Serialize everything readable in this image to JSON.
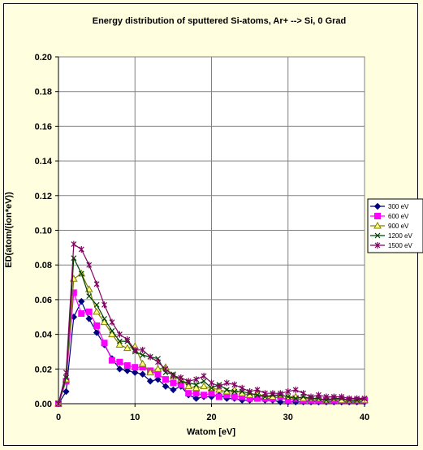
{
  "chart_data": {
    "type": "line",
    "title": "Energy distribution of sputtered Si-atoms,  Ar+ --> Si, 0 Grad",
    "xlabel": "Watom [eV]",
    "ylabel": "ED(atom/(ion*eV))",
    "xlim": [
      0,
      40
    ],
    "ylim": [
      0,
      0.2
    ],
    "xticks": [
      0,
      10,
      20,
      30,
      40
    ],
    "xtick_labels": [
      "0",
      "10",
      "20",
      "30",
      "40"
    ],
    "yticks": [
      0,
      0.02,
      0.04,
      0.06,
      0.08,
      0.1,
      0.12,
      0.14,
      0.16,
      0.18,
      0.2
    ],
    "ytick_labels": [
      "0.00",
      "0.02",
      "0.04",
      "0.06",
      "0.08",
      "0.10",
      "0.12",
      "0.14",
      "0.16",
      "0.18",
      "0.20"
    ],
    "grid": true,
    "legend_position": "right",
    "x": [
      0,
      1,
      2,
      3,
      4,
      5,
      6,
      7,
      8,
      9,
      10,
      11,
      12,
      13,
      14,
      15,
      16,
      17,
      18,
      19,
      20,
      21,
      22,
      23,
      24,
      25,
      26,
      27,
      28,
      29,
      30,
      31,
      32,
      33,
      34,
      35,
      36,
      37,
      38,
      39,
      40
    ],
    "series": [
      {
        "name": "300 eV",
        "color": "#000080",
        "marker": "diamond",
        "values": [
          0.0,
          0.007,
          0.05,
          0.059,
          0.049,
          0.041,
          0.034,
          0.026,
          0.02,
          0.019,
          0.018,
          0.017,
          0.013,
          0.014,
          0.01,
          0.008,
          0.01,
          0.005,
          0.003,
          0.004,
          0.004,
          0.005,
          0.003,
          0.003,
          0.002,
          0.002,
          0.003,
          0.002,
          0.002,
          0.001,
          0.001,
          0.001,
          0.001,
          0.001,
          0.001,
          0.001,
          0.001,
          0.001,
          0.001,
          0.001,
          0.001
        ]
      },
      {
        "name": "600 eV",
        "color": "#ff00ff",
        "marker": "square",
        "values": [
          0.0,
          0.013,
          0.064,
          0.052,
          0.053,
          0.045,
          0.035,
          0.025,
          0.024,
          0.022,
          0.021,
          0.021,
          0.019,
          0.017,
          0.014,
          0.012,
          0.011,
          0.006,
          0.006,
          0.005,
          0.006,
          0.004,
          0.005,
          0.004,
          0.004,
          0.003,
          0.003,
          0.003,
          0.003,
          0.004,
          0.002,
          0.003,
          0.002,
          0.002,
          0.002,
          0.002,
          0.002,
          0.002,
          0.002,
          0.002,
          0.002
        ]
      },
      {
        "name": "900 eV",
        "color": "#808000",
        "marker": "triangle",
        "values": [
          0.0,
          0.014,
          0.072,
          0.075,
          0.066,
          0.053,
          0.047,
          0.04,
          0.034,
          0.032,
          0.033,
          0.023,
          0.018,
          0.02,
          0.021,
          0.016,
          0.014,
          0.01,
          0.009,
          0.01,
          0.009,
          0.008,
          0.007,
          0.008,
          0.006,
          0.005,
          0.006,
          0.004,
          0.004,
          0.005,
          0.004,
          0.004,
          0.003,
          0.003,
          0.003,
          0.002,
          0.003,
          0.002,
          0.002,
          0.002,
          0.002
        ]
      },
      {
        "name": "1200 eV",
        "color": "#004000",
        "marker": "x",
        "values": [
          0.0,
          0.015,
          0.084,
          0.075,
          0.062,
          0.057,
          0.049,
          0.042,
          0.036,
          0.036,
          0.03,
          0.028,
          0.027,
          0.026,
          0.018,
          0.017,
          0.013,
          0.012,
          0.011,
          0.013,
          0.009,
          0.011,
          0.008,
          0.007,
          0.007,
          0.006,
          0.005,
          0.004,
          0.005,
          0.005,
          0.004,
          0.003,
          0.004,
          0.003,
          0.003,
          0.002,
          0.003,
          0.003,
          0.002,
          0.002,
          0.003
        ]
      },
      {
        "name": "1500 eV",
        "color": "#800060",
        "marker": "star",
        "values": [
          0.0,
          0.018,
          0.092,
          0.089,
          0.08,
          0.069,
          0.057,
          0.047,
          0.04,
          0.037,
          0.031,
          0.031,
          0.027,
          0.024,
          0.02,
          0.016,
          0.015,
          0.013,
          0.014,
          0.016,
          0.012,
          0.01,
          0.012,
          0.011,
          0.009,
          0.007,
          0.008,
          0.006,
          0.006,
          0.006,
          0.007,
          0.008,
          0.006,
          0.004,
          0.005,
          0.004,
          0.004,
          0.004,
          0.003,
          0.003,
          0.003
        ]
      }
    ]
  }
}
